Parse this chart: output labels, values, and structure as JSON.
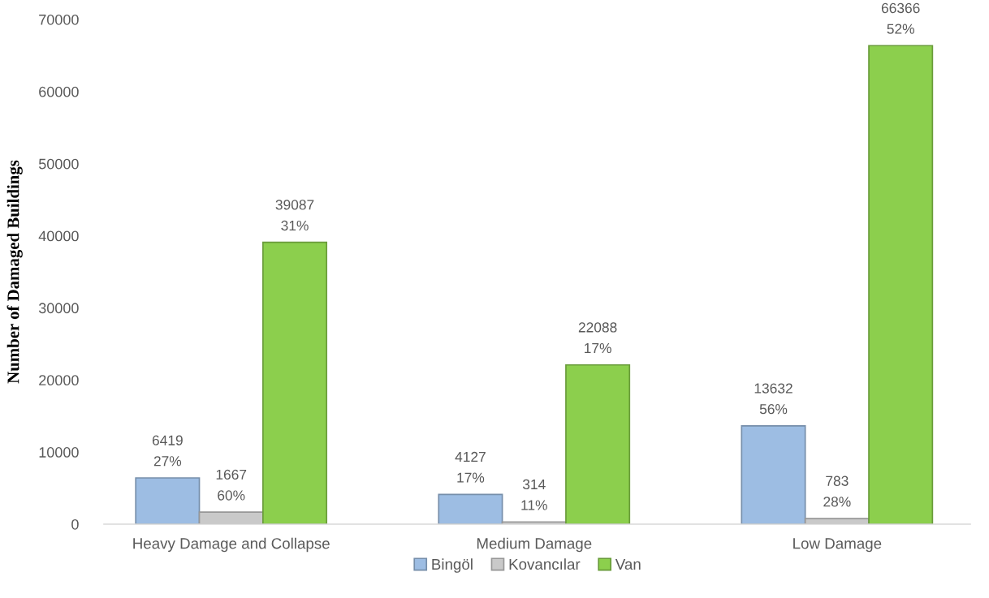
{
  "chart_data": {
    "type": "bar",
    "ylabel": "Number of Damaged Buildings",
    "categories": [
      "Heavy Damage and Collapse",
      "Medium Damage",
      "Low Damage"
    ],
    "series": [
      {
        "name": "Bingöl",
        "color": "#9dbde3",
        "values": [
          6419,
          4127,
          13632
        ],
        "value_labels": [
          "6419\n27%",
          "4127\n17%",
          "13632\n56%"
        ]
      },
      {
        "name": "Kovancılar",
        "color": "#c9c9c9",
        "values": [
          1667,
          314,
          783
        ],
        "value_labels": [
          "1667\n60%",
          "314\n11%",
          "783\n28%"
        ]
      },
      {
        "name": "Van",
        "color": "#8ccf4d",
        "values": [
          39087,
          22088,
          66366
        ],
        "value_labels": [
          "39087\n31%",
          "22088\n17%",
          "66366\n52%"
        ]
      }
    ],
    "ylim": [
      0,
      70000
    ],
    "yticks": [
      0,
      10000,
      20000,
      30000,
      40000,
      50000,
      60000,
      70000
    ],
    "grid": false,
    "legend": "bottom"
  }
}
